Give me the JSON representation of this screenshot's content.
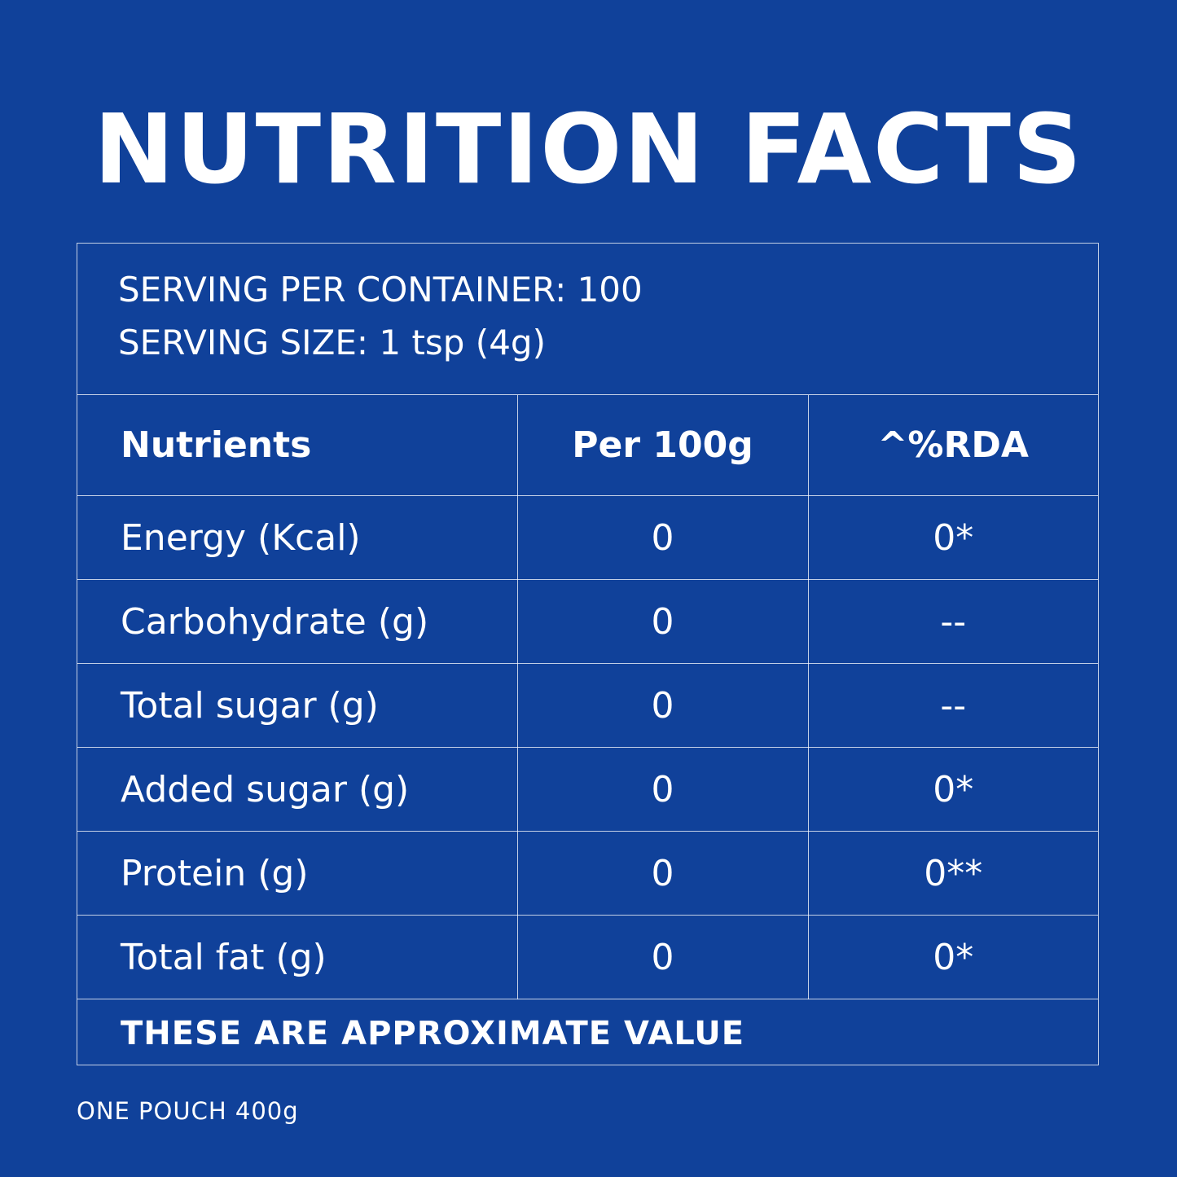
{
  "title": "NUTRITION FACTS",
  "serving": {
    "per_container": "SERVING PER CONTAINER: 100",
    "size": "SERVING SIZE: 1 tsp (4g)"
  },
  "table": {
    "headers": [
      "Nutrients",
      "Per 100g",
      "^%RDA"
    ],
    "rows": [
      {
        "nutrient": "Energy (Kcal)",
        "per100g": "0",
        "rda": "0*"
      },
      {
        "nutrient": "Carbohydrate (g)",
        "per100g": "0",
        "rda": "--"
      },
      {
        "nutrient": "Total sugar (g)",
        "per100g": "0",
        "rda": "--"
      },
      {
        "nutrient": "Added sugar (g)",
        "per100g": "0",
        "rda": "0*"
      },
      {
        "nutrient": "Protein (g)",
        "per100g": "0",
        "rda": "0**"
      },
      {
        "nutrient": "Total fat (g)",
        "per100g": "0",
        "rda": "0*"
      }
    ]
  },
  "note": "THESE ARE APPROXIMATE VALUE",
  "pouch": "ONE POUCH 400g",
  "colors": {
    "background": "#10419a",
    "text": "#ffffff"
  }
}
